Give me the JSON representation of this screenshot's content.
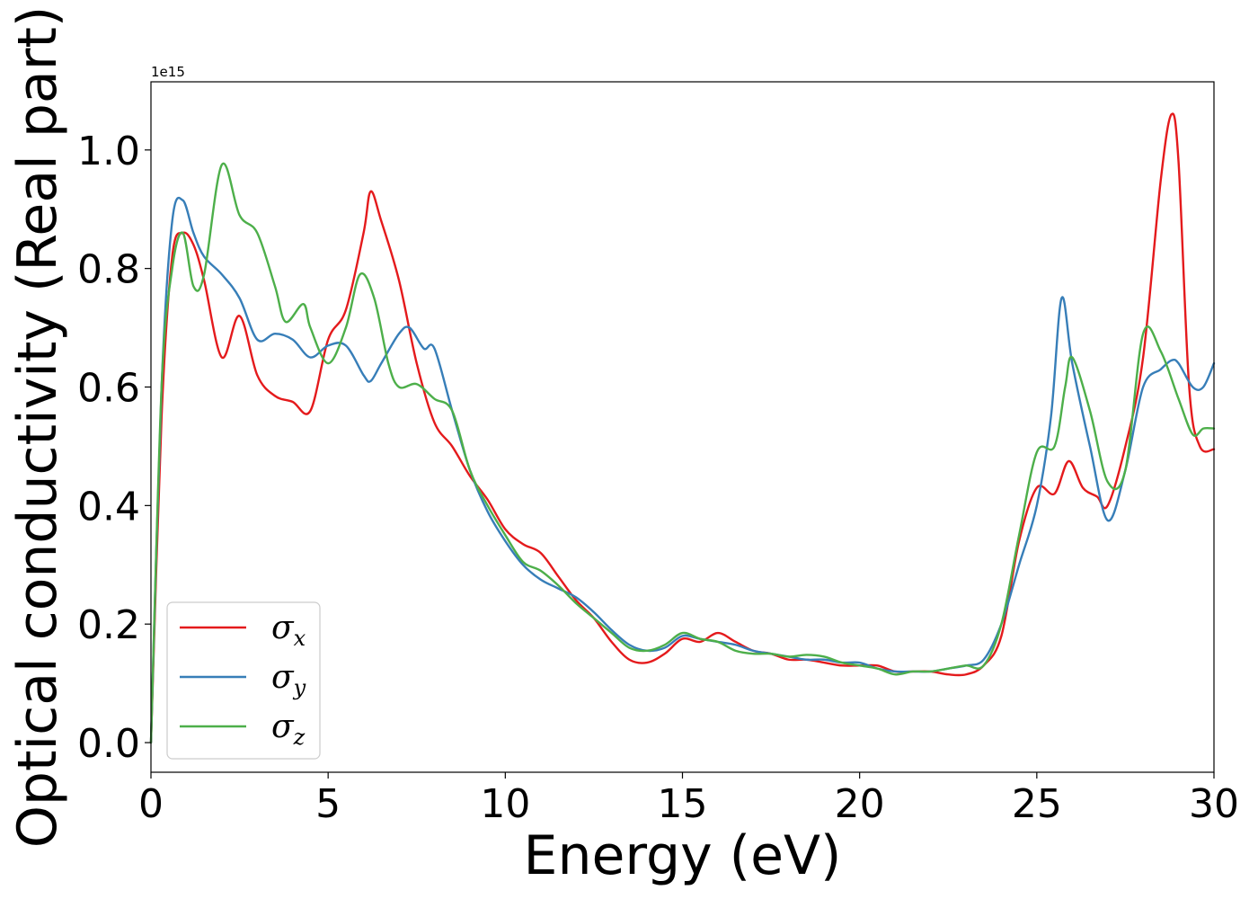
{
  "chart_data": {
    "type": "line",
    "title": "",
    "xlabel": "Energy (eV)",
    "ylabel": "Optical conductivity (Real part)",
    "y_offset_text": "1e15",
    "xlim": [
      0,
      30
    ],
    "ylim": [
      -0.05,
      1.115
    ],
    "x_ticks": [
      0,
      5,
      10,
      15,
      20,
      25,
      30
    ],
    "x_tick_labels": [
      "0",
      "5",
      "10",
      "15",
      "20",
      "25",
      "30"
    ],
    "y_ticks": [
      0.0,
      0.2,
      0.4,
      0.6,
      0.8,
      1.0
    ],
    "y_tick_labels": [
      "0.0",
      "0.2",
      "0.4",
      "0.6",
      "0.8",
      "1.0"
    ],
    "grid": false,
    "legend_position": "lower-left",
    "series": [
      {
        "name": "σx",
        "symbol": "σ",
        "subscript": "x",
        "color": "#e41a1c",
        "x": [
          0,
          0.3,
          0.6,
          0.9,
          1.2,
          1.5,
          2.0,
          2.5,
          3.0,
          3.5,
          4.0,
          4.5,
          5.0,
          5.5,
          6.0,
          6.2,
          6.5,
          7.0,
          7.5,
          8.0,
          8.5,
          9.0,
          9.5,
          10.0,
          10.5,
          11.0,
          11.5,
          12.0,
          12.5,
          13.0,
          13.5,
          14.0,
          14.5,
          15.0,
          15.5,
          16.0,
          16.5,
          17.0,
          17.5,
          18.0,
          18.5,
          19.0,
          19.5,
          20.0,
          20.5,
          21.0,
          21.5,
          22.0,
          22.5,
          23.0,
          23.5,
          24.0,
          24.5,
          25.0,
          25.5,
          25.9,
          26.3,
          26.7,
          27.0,
          27.5,
          28.0,
          28.5,
          28.8,
          29.0,
          29.3,
          29.6,
          30.0
        ],
        "y": [
          0.0,
          0.55,
          0.82,
          0.86,
          0.84,
          0.78,
          0.65,
          0.72,
          0.62,
          0.585,
          0.575,
          0.56,
          0.68,
          0.73,
          0.86,
          0.93,
          0.88,
          0.78,
          0.64,
          0.54,
          0.5,
          0.45,
          0.41,
          0.36,
          0.335,
          0.32,
          0.28,
          0.24,
          0.21,
          0.17,
          0.14,
          0.135,
          0.15,
          0.175,
          0.17,
          0.185,
          0.17,
          0.155,
          0.15,
          0.14,
          0.14,
          0.135,
          0.13,
          0.13,
          0.13,
          0.12,
          0.12,
          0.12,
          0.115,
          0.115,
          0.13,
          0.18,
          0.34,
          0.43,
          0.42,
          0.475,
          0.43,
          0.415,
          0.4,
          0.5,
          0.65,
          0.95,
          1.06,
          0.98,
          0.6,
          0.5,
          0.495
        ]
      },
      {
        "name": "σy",
        "symbol": "σ",
        "subscript": "y",
        "color": "#377eb8",
        "x": [
          0,
          0.3,
          0.6,
          0.9,
          1.2,
          1.5,
          2.0,
          2.5,
          3.0,
          3.5,
          4.0,
          4.5,
          5.0,
          5.5,
          6.0,
          6.2,
          6.5,
          7.0,
          7.3,
          7.7,
          8.0,
          8.5,
          9.0,
          9.5,
          10.0,
          10.5,
          11.0,
          11.5,
          12.0,
          12.5,
          13.0,
          13.5,
          14.0,
          14.5,
          15.0,
          15.5,
          16.0,
          16.5,
          17.0,
          17.5,
          18.0,
          18.5,
          19.0,
          19.5,
          20.0,
          20.5,
          21.0,
          21.5,
          22.0,
          22.5,
          23.0,
          23.5,
          24.0,
          24.5,
          25.0,
          25.4,
          25.7,
          26.0,
          26.5,
          27.0,
          27.5,
          28.0,
          28.5,
          28.8,
          29.0,
          29.4,
          29.7,
          30.0
        ],
        "y": [
          0.0,
          0.6,
          0.88,
          0.915,
          0.86,
          0.82,
          0.79,
          0.75,
          0.68,
          0.69,
          0.68,
          0.65,
          0.67,
          0.67,
          0.62,
          0.61,
          0.64,
          0.69,
          0.7,
          0.665,
          0.665,
          0.56,
          0.46,
          0.39,
          0.34,
          0.3,
          0.275,
          0.26,
          0.245,
          0.22,
          0.19,
          0.165,
          0.155,
          0.16,
          0.18,
          0.175,
          0.17,
          0.165,
          0.155,
          0.15,
          0.145,
          0.14,
          0.14,
          0.135,
          0.135,
          0.125,
          0.12,
          0.12,
          0.12,
          0.125,
          0.13,
          0.14,
          0.2,
          0.3,
          0.4,
          0.55,
          0.75,
          0.64,
          0.5,
          0.375,
          0.46,
          0.6,
          0.63,
          0.645,
          0.64,
          0.6,
          0.6,
          0.64
        ]
      },
      {
        "name": "σz",
        "symbol": "σ",
        "subscript": "z",
        "color": "#4daf4a",
        "x": [
          0,
          0.3,
          0.6,
          0.9,
          1.2,
          1.5,
          2.0,
          2.5,
          3.0,
          3.5,
          3.8,
          4.3,
          4.5,
          5.0,
          5.5,
          5.9,
          6.3,
          6.7,
          7.0,
          7.5,
          8.0,
          8.5,
          9.0,
          9.5,
          10.0,
          10.5,
          11.0,
          11.5,
          12.0,
          12.5,
          13.0,
          13.5,
          14.0,
          14.5,
          15.0,
          15.5,
          16.0,
          16.5,
          17.0,
          17.5,
          18.0,
          18.5,
          19.0,
          19.5,
          20.0,
          20.5,
          21.0,
          21.5,
          22.0,
          22.5,
          23.0,
          23.5,
          24.0,
          24.5,
          25.0,
          25.5,
          25.8,
          26.0,
          26.5,
          27.0,
          27.5,
          28.0,
          28.5,
          29.0,
          29.4,
          29.7,
          30.0
        ],
        "y": [
          0.0,
          0.6,
          0.8,
          0.86,
          0.77,
          0.79,
          0.975,
          0.89,
          0.86,
          0.77,
          0.71,
          0.74,
          0.7,
          0.64,
          0.7,
          0.79,
          0.75,
          0.64,
          0.6,
          0.605,
          0.58,
          0.56,
          0.46,
          0.4,
          0.35,
          0.305,
          0.29,
          0.265,
          0.235,
          0.21,
          0.185,
          0.16,
          0.155,
          0.165,
          0.185,
          0.175,
          0.17,
          0.155,
          0.15,
          0.15,
          0.145,
          0.148,
          0.145,
          0.135,
          0.13,
          0.125,
          0.115,
          0.12,
          0.12,
          0.125,
          0.13,
          0.13,
          0.2,
          0.35,
          0.49,
          0.5,
          0.6,
          0.65,
          0.56,
          0.44,
          0.46,
          0.69,
          0.66,
          0.58,
          0.52,
          0.53,
          0.53
        ]
      }
    ]
  }
}
